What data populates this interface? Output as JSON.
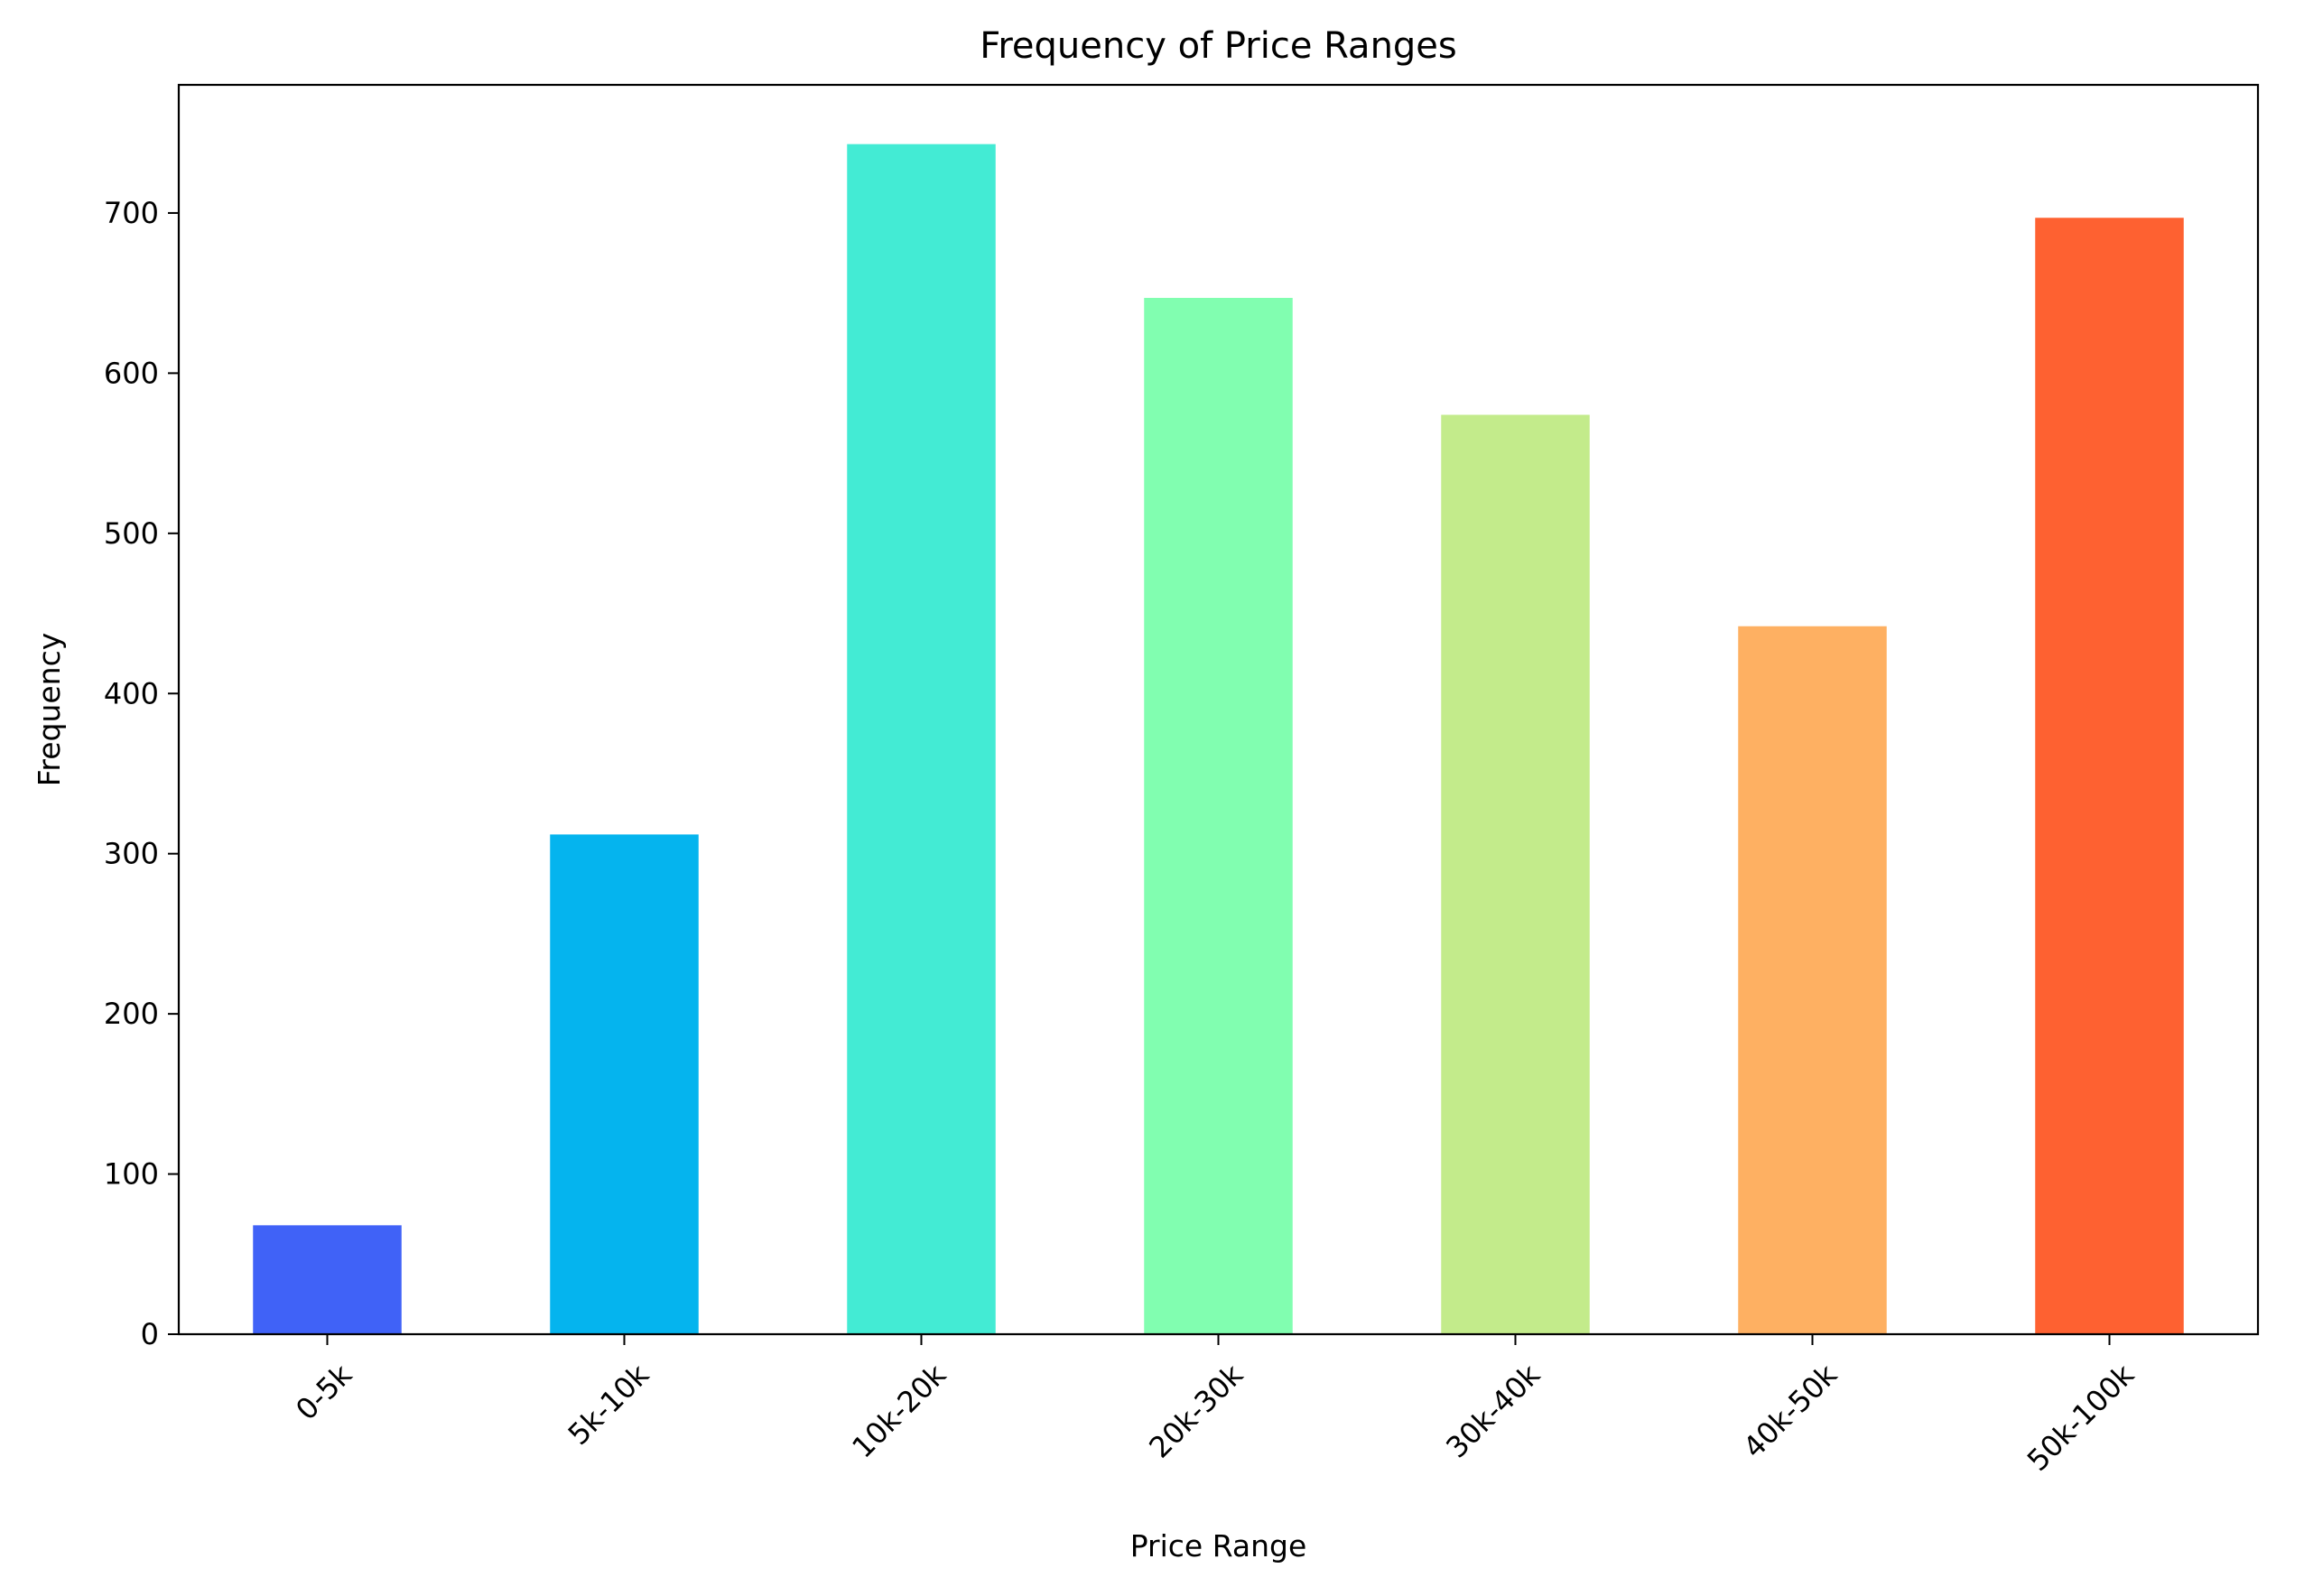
{
  "chart_data": {
    "type": "bar",
    "title": "Frequency of Price Ranges",
    "xlabel": "Price Range",
    "ylabel": "Frequency",
    "categories": [
      "0-5k",
      "5k-10k",
      "10k-20k",
      "20k-30k",
      "30k-40k",
      "40k-50k",
      "50k-100k"
    ],
    "values": [
      68,
      312,
      743,
      647,
      574,
      442,
      697
    ],
    "colors": [
      "#4062f7",
      "#05b4ee",
      "#43ebd4",
      "#81feb0",
      "#c3eb8b",
      "#feb062",
      "#fe6131"
    ],
    "ylim": [
      0,
      780
    ],
    "yticks": [
      0,
      100,
      200,
      300,
      400,
      500,
      600,
      700
    ],
    "xtick_rotation": 45,
    "grid": false,
    "legend": "none"
  }
}
